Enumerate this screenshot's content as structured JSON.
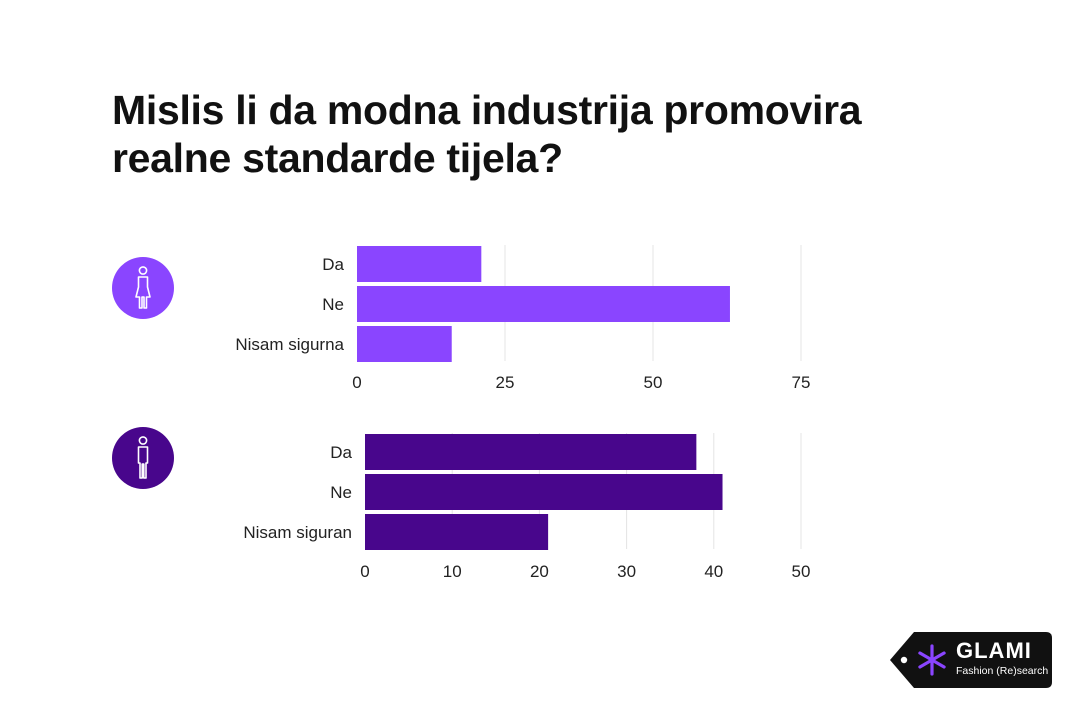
{
  "title_lines": [
    "Mislis li da modna industrija promovira",
    "realne standarde tijela?"
  ],
  "colors": {
    "female": "#8A45FF",
    "male": "#48068C",
    "grid": "#E4E4E4",
    "text": "#222222",
    "logo_bg": "#111111",
    "logo_star": "#8A45FF"
  },
  "icons": {
    "female": "female-person-icon",
    "male": "male-person-icon",
    "logo": "asterisk-icon"
  },
  "logo": {
    "word": "GLAMI",
    "tagline": "Fashion (Re)search"
  },
  "chart_data": [
    {
      "type": "bar",
      "orientation": "horizontal",
      "group": "female",
      "categories": [
        "Da",
        "Ne",
        "Nisam sigurna"
      ],
      "values": [
        21,
        63,
        16
      ],
      "xlim": [
        0,
        80
      ],
      "xticks": [
        0,
        25,
        50,
        75
      ],
      "grid": true
    },
    {
      "type": "bar",
      "orientation": "horizontal",
      "group": "male",
      "categories": [
        "Da",
        "Ne",
        "Nisam siguran"
      ],
      "values": [
        38,
        41,
        21
      ],
      "xlim": [
        0,
        52
      ],
      "xticks": [
        0,
        10,
        20,
        30,
        40,
        50
      ],
      "grid": true
    }
  ]
}
